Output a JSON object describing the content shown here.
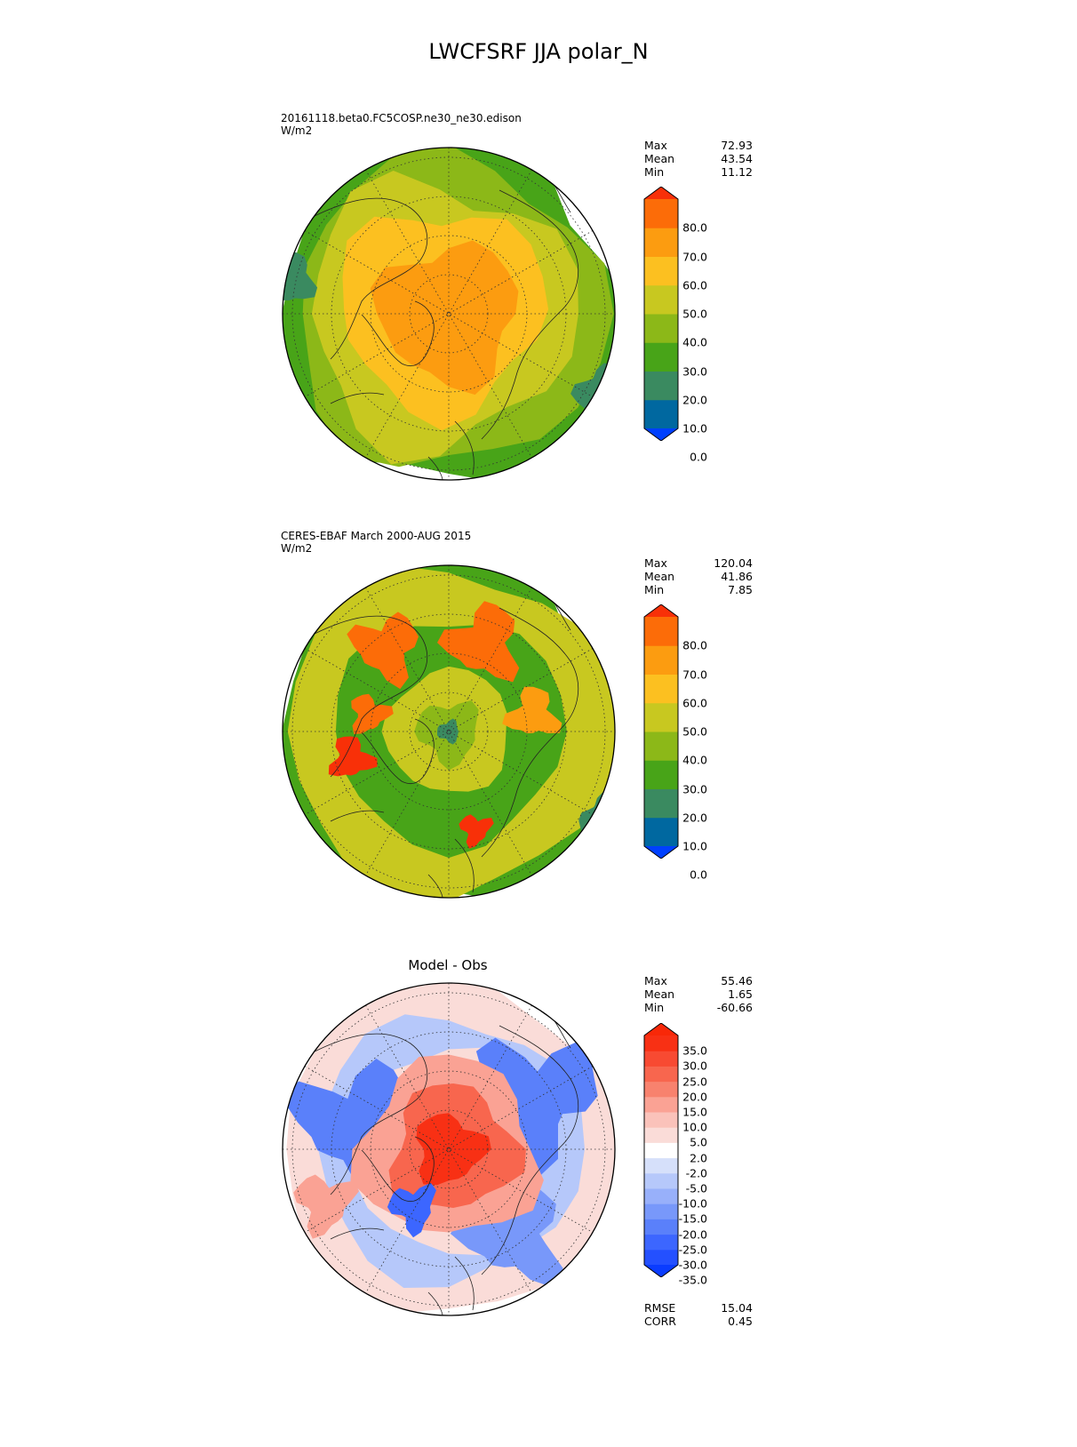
{
  "title": "LWCFSRF JJA polar_N",
  "panels": [
    {
      "header_line1": "20161118.beta0.FC5COSP.ne30_ne30.edison",
      "header_line2": "W/m2",
      "stats": [
        {
          "label": "Max",
          "value": "72.93"
        },
        {
          "label": "Mean",
          "value": "43.54"
        },
        {
          "label": "Min",
          "value": "11.12"
        }
      ],
      "colorbar_labels": [
        "80.0",
        "70.0",
        "60.0",
        "50.0",
        "40.0",
        "30.0",
        "20.0",
        "10.0",
        "0.0"
      ]
    },
    {
      "header_line1": "CERES-EBAF March 2000-AUG 2015",
      "header_line2": "W/m2",
      "stats": [
        {
          "label": "Max",
          "value": "120.04"
        },
        {
          "label": "Mean",
          "value": "41.86"
        },
        {
          "label": "Min",
          "value": "7.85"
        }
      ],
      "colorbar_labels": [
        "80.0",
        "70.0",
        "60.0",
        "50.0",
        "40.0",
        "30.0",
        "20.0",
        "10.0",
        "0.0"
      ]
    },
    {
      "title": "Model - Obs",
      "stats": [
        {
          "label": "Max",
          "value": "55.46"
        },
        {
          "label": "Mean",
          "value": "1.65"
        },
        {
          "label": "Min",
          "value": "-60.66"
        }
      ],
      "colorbar_labels": [
        "35.0",
        "30.0",
        "25.0",
        "20.0",
        "15.0",
        "10.0",
        "5.0",
        "2.0",
        "-2.0",
        "-5.0",
        "-10.0",
        "-15.0",
        "-20.0",
        "-25.0",
        "-30.0",
        "-35.0"
      ],
      "metrics": [
        {
          "label": "RMSE",
          "value": "15.04"
        },
        {
          "label": "CORR",
          "value": "0.45"
        }
      ]
    }
  ],
  "colors": {
    "field_scale": [
      "#0040ff",
      "#0068a0",
      "#3a8a60",
      "#48a418",
      "#8cb818",
      "#c8c820",
      "#fcc020",
      "#fc9c10",
      "#fc6c08",
      "#f83008"
    ],
    "diff_scale": [
      "#0a3cff",
      "#2450ff",
      "#3c66ff",
      "#5a80fa",
      "#7898fa",
      "#98b0fa",
      "#b6c8fa",
      "#d6e0fa",
      "#ffffff",
      "#fadcd8",
      "#fac2ba",
      "#faa294",
      "#f8826e",
      "#f8664e",
      "#f84a32",
      "#f83014",
      "#f82808"
    ]
  }
}
